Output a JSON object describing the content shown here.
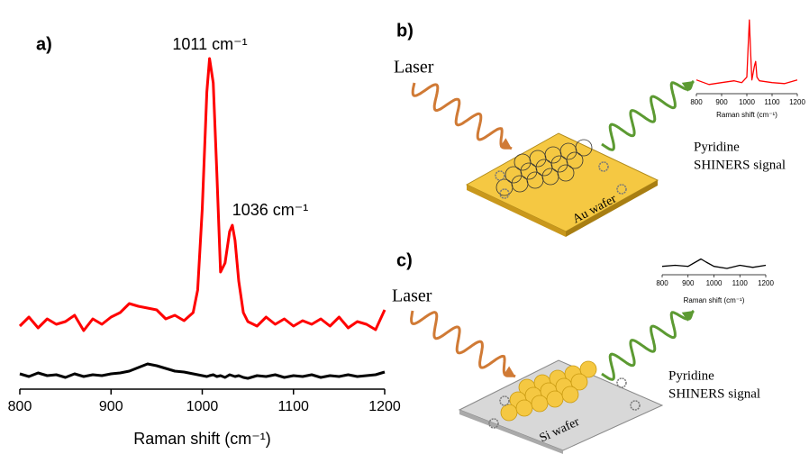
{
  "chart_data": [
    {
      "type": "line",
      "label": "a)",
      "x_label": "Raman shift (cm⁻¹)",
      "annotations": [
        "1011 cm⁻¹",
        "1036 cm⁻¹"
      ],
      "x": [
        800,
        810,
        820,
        830,
        840,
        850,
        860,
        870,
        880,
        890,
        900,
        910,
        920,
        930,
        940,
        950,
        960,
        970,
        980,
        990,
        995,
        1000,
        1005,
        1008,
        1012,
        1016,
        1020,
        1025,
        1030,
        1033,
        1036,
        1040,
        1045,
        1050,
        1060,
        1070,
        1080,
        1090,
        1100,
        1110,
        1120,
        1130,
        1140,
        1150,
        1160,
        1170,
        1180,
        1190,
        1200
      ],
      "series": [
        {
          "color": "#ff0000",
          "values": [
            70,
            80,
            68,
            78,
            72,
            75,
            82,
            65,
            78,
            72,
            80,
            85,
            95,
            92,
            90,
            88,
            78,
            82,
            76,
            85,
            110,
            200,
            330,
            367,
            340,
            240,
            130,
            140,
            175,
            182,
            165,
            120,
            85,
            75,
            70,
            80,
            72,
            78,
            70,
            76,
            72,
            78,
            70,
            80,
            68,
            75,
            72,
            66,
            88
          ]
        },
        {
          "color": "#000000",
          "values": [
            17,
            14,
            18,
            15,
            16,
            13,
            17,
            14,
            16,
            15,
            17,
            18,
            20,
            24,
            28,
            26,
            23,
            20,
            19,
            17,
            16,
            15,
            14,
            15,
            16,
            14,
            15,
            13,
            16,
            15,
            14,
            15,
            13,
            12,
            15,
            14,
            16,
            13,
            15,
            14,
            16,
            13,
            15,
            14,
            16,
            14,
            15,
            16,
            19
          ]
        }
      ],
      "xlim": [
        800,
        1200
      ],
      "ylim": [
        0,
        400
      ],
      "xticks": [
        800,
        900,
        1000,
        1100,
        1200
      ]
    },
    {
      "type": "line",
      "x_label": "Raman shift (cm⁻¹)",
      "x": [
        800,
        850,
        900,
        950,
        980,
        1000,
        1005,
        1010,
        1015,
        1020,
        1030,
        1035,
        1040,
        1050,
        1100,
        1150,
        1200
      ],
      "series": [
        {
          "color": "#ff0000",
          "values": [
            15,
            10,
            12,
            14,
            12,
            18,
            50,
            80,
            45,
            15,
            30,
            35,
            18,
            14,
            12,
            11,
            15
          ]
        }
      ],
      "xlim": [
        800,
        1200
      ],
      "ylim": [
        0,
        90
      ],
      "xticks": [
        800,
        900,
        1000,
        1100,
        1200
      ]
    },
    {
      "type": "line",
      "x_label": "Raman shift (cm⁻¹)",
      "x": [
        800,
        850,
        900,
        950,
        970,
        1000,
        1050,
        1100,
        1150,
        1200
      ],
      "series": [
        {
          "color": "#000000",
          "values": [
            8,
            9,
            8,
            15,
            12,
            8,
            6,
            9,
            7,
            9
          ]
        }
      ],
      "xlim": [
        800,
        1200
      ],
      "ylim": [
        0,
        30
      ],
      "xticks": [
        800,
        900,
        1000,
        1100,
        1200
      ]
    }
  ],
  "diagrams": [
    {
      "label": "b)",
      "laser": "Laser",
      "signal": [
        "Pyridine",
        "SHINERS signal"
      ],
      "substrate": "Au wafer"
    },
    {
      "label": "c)",
      "laser": "Laser",
      "signal": [
        "Pyridine",
        "SHINERS signal"
      ],
      "substrate": "Si wafer"
    }
  ]
}
